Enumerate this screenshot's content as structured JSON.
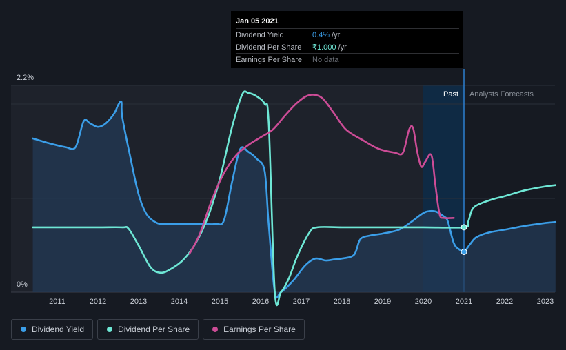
{
  "tooltip": {
    "date": "Jan 05 2021",
    "rows": [
      {
        "label": "Dividend Yield",
        "value": "0.4%",
        "unit": "/yr"
      },
      {
        "label": "Dividend Per Share",
        "value": "₹1.000",
        "unit": "/yr"
      },
      {
        "label": "Earnings Per Share",
        "value": "No data",
        "unit": ""
      }
    ]
  },
  "region_labels": {
    "past": "Past",
    "forecast": "Analysts Forecasts"
  },
  "legend": [
    {
      "label": "Dividend Yield",
      "color": "#3b9ee8"
    },
    {
      "label": "Dividend Per Share",
      "color": "#6ee7d5"
    },
    {
      "label": "Earnings Per Share",
      "color": "#cc4c96"
    }
  ],
  "chart_data": {
    "type": "line",
    "x_ticks": [
      "2011",
      "2012",
      "2013",
      "2014",
      "2015",
      "2016",
      "2017",
      "2018",
      "2019",
      "2020",
      "2021",
      "2022",
      "2023"
    ],
    "y_tick_labels": [
      "2.2%",
      "0%"
    ],
    "y_range_dividend_yield_pct": [
      0,
      2.2
    ],
    "xlim": [
      2010.4,
      2023.25
    ],
    "past_until": 2021.0,
    "highlight_start": 2020.0,
    "colors": {
      "dividend_yield": "#3b9ee8",
      "dividend_per_share": "#6ee7d5",
      "earnings_per_share": "#cc4c96"
    },
    "series": [
      {
        "name": "Dividend Yield",
        "key": "dividend_yield",
        "unit": "%",
        "filled": true,
        "points": [
          [
            2010.4,
            1.6
          ],
          [
            2010.8,
            1.55
          ],
          [
            2011.2,
            1.51
          ],
          [
            2011.45,
            1.51
          ],
          [
            2011.65,
            1.78
          ],
          [
            2011.8,
            1.76
          ],
          [
            2012.0,
            1.72
          ],
          [
            2012.2,
            1.76
          ],
          [
            2012.4,
            1.86
          ],
          [
            2012.5,
            1.95
          ],
          [
            2012.58,
            1.98
          ],
          [
            2012.6,
            1.82
          ],
          [
            2012.8,
            1.4
          ],
          [
            2013.0,
            1.02
          ],
          [
            2013.2,
            0.81
          ],
          [
            2013.45,
            0.72
          ],
          [
            2013.7,
            0.71
          ],
          [
            2014.0,
            0.71
          ],
          [
            2014.5,
            0.71
          ],
          [
            2014.9,
            0.71
          ],
          [
            2015.1,
            0.75
          ],
          [
            2015.3,
            1.15
          ],
          [
            2015.5,
            1.49
          ],
          [
            2015.7,
            1.46
          ],
          [
            2015.9,
            1.39
          ],
          [
            2016.1,
            1.26
          ],
          [
            2016.2,
            0.7
          ],
          [
            2016.35,
            0.0
          ],
          [
            2016.5,
            0.0
          ],
          [
            2016.8,
            0.12
          ],
          [
            2017.1,
            0.28
          ],
          [
            2017.35,
            0.35
          ],
          [
            2017.6,
            0.33
          ],
          [
            2017.8,
            0.34
          ],
          [
            2018.0,
            0.35
          ],
          [
            2018.3,
            0.39
          ],
          [
            2018.45,
            0.55
          ],
          [
            2018.7,
            0.59
          ],
          [
            2019.0,
            0.61
          ],
          [
            2019.4,
            0.65
          ],
          [
            2019.7,
            0.73
          ],
          [
            2019.95,
            0.81
          ],
          [
            2020.1,
            0.84
          ],
          [
            2020.3,
            0.84
          ],
          [
            2020.5,
            0.79
          ],
          [
            2020.6,
            0.74
          ],
          [
            2020.75,
            0.51
          ],
          [
            2020.9,
            0.44
          ],
          [
            2021.0,
            0.42
          ],
          [
            2021.15,
            0.5
          ],
          [
            2021.3,
            0.57
          ],
          [
            2021.6,
            0.62
          ],
          [
            2022.0,
            0.65
          ],
          [
            2022.5,
            0.69
          ],
          [
            2023.0,
            0.72
          ],
          [
            2023.25,
            0.73
          ]
        ]
      },
      {
        "name": "Dividend Per Share",
        "key": "dividend_per_share",
        "unit": "₹",
        "points": [
          [
            2010.4,
            1.0
          ],
          [
            2011.0,
            1.0
          ],
          [
            2012.0,
            1.0
          ],
          [
            2012.6,
            1.0
          ],
          [
            2012.75,
            0.98
          ],
          [
            2013.0,
            0.72
          ],
          [
            2013.3,
            0.38
          ],
          [
            2013.55,
            0.3
          ],
          [
            2013.8,
            0.36
          ],
          [
            2014.1,
            0.5
          ],
          [
            2014.4,
            0.75
          ],
          [
            2014.7,
            1.15
          ],
          [
            2015.0,
            1.75
          ],
          [
            2015.3,
            2.55
          ],
          [
            2015.55,
            3.05
          ],
          [
            2015.7,
            3.07
          ],
          [
            2015.9,
            3.02
          ],
          [
            2016.1,
            2.9
          ],
          [
            2016.2,
            2.6
          ],
          [
            2016.35,
            0.0
          ],
          [
            2016.5,
            0.0
          ],
          [
            2016.7,
            0.22
          ],
          [
            2016.9,
            0.55
          ],
          [
            2017.2,
            0.92
          ],
          [
            2017.4,
            1.0
          ],
          [
            2018.0,
            1.0
          ],
          [
            2019.0,
            1.0
          ],
          [
            2020.0,
            1.0
          ],
          [
            2021.0,
            1.0
          ],
          [
            2021.1,
            1.08
          ],
          [
            2021.2,
            1.27
          ],
          [
            2021.35,
            1.35
          ],
          [
            2021.7,
            1.43
          ],
          [
            2022.0,
            1.48
          ],
          [
            2022.5,
            1.57
          ],
          [
            2023.0,
            1.63
          ],
          [
            2023.25,
            1.65
          ]
        ]
      },
      {
        "name": "Earnings Per Share",
        "key": "earnings_per_share",
        "unit": "₹",
        "points": [
          [
            2014.25,
            0.3
          ],
          [
            2014.5,
            0.45
          ],
          [
            2014.8,
            0.72
          ],
          [
            2015.1,
            0.93
          ],
          [
            2015.4,
            1.07
          ],
          [
            2015.7,
            1.15
          ],
          [
            2016.0,
            1.21
          ],
          [
            2016.3,
            1.27
          ],
          [
            2016.6,
            1.38
          ],
          [
            2016.9,
            1.48
          ],
          [
            2017.2,
            1.54
          ],
          [
            2017.5,
            1.52
          ],
          [
            2017.8,
            1.4
          ],
          [
            2018.1,
            1.27
          ],
          [
            2018.5,
            1.19
          ],
          [
            2018.9,
            1.12
          ],
          [
            2019.3,
            1.09
          ],
          [
            2019.5,
            1.09
          ],
          [
            2019.65,
            1.27
          ],
          [
            2019.75,
            1.28
          ],
          [
            2019.85,
            1.1
          ],
          [
            2019.95,
            0.98
          ],
          [
            2020.05,
            1.02
          ],
          [
            2020.2,
            1.07
          ],
          [
            2020.3,
            0.83
          ],
          [
            2020.4,
            0.61
          ],
          [
            2020.5,
            0.58
          ],
          [
            2020.75,
            0.58
          ]
        ]
      }
    ]
  }
}
